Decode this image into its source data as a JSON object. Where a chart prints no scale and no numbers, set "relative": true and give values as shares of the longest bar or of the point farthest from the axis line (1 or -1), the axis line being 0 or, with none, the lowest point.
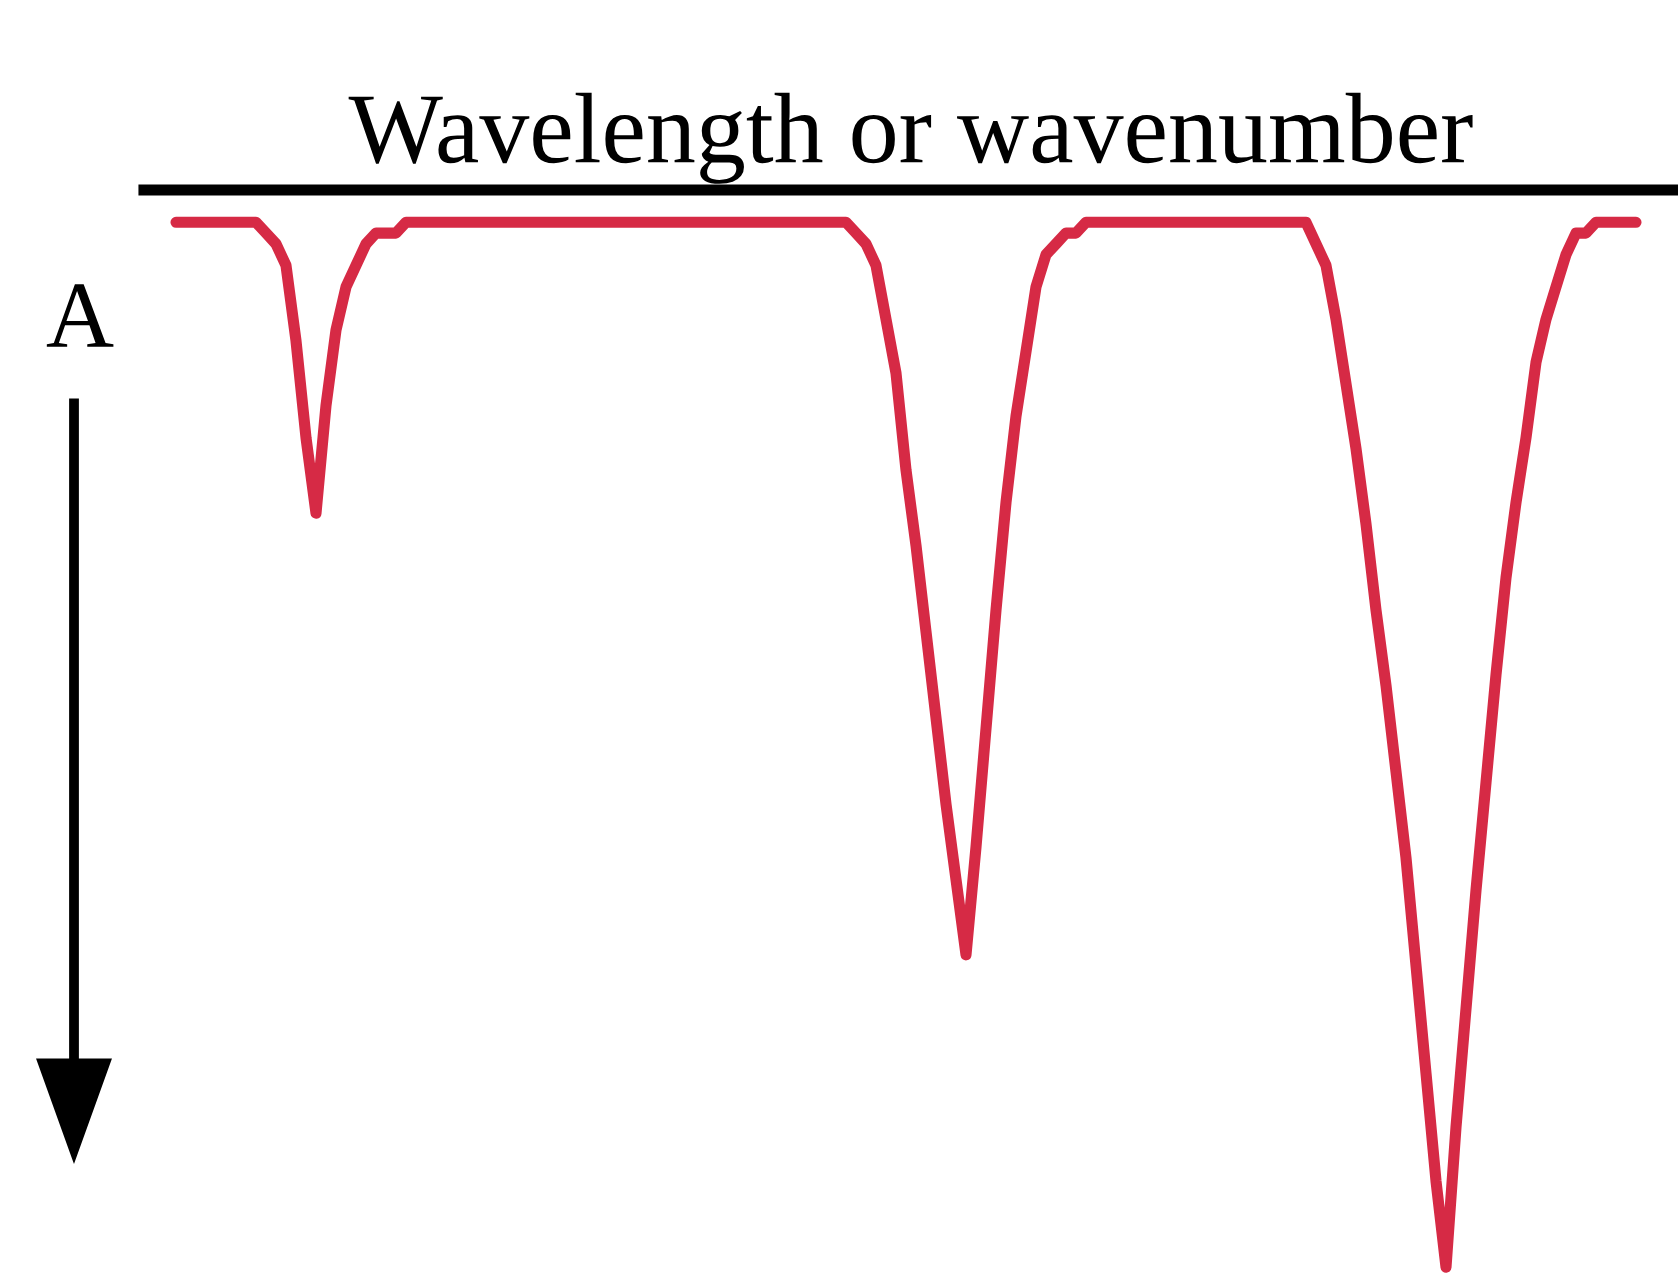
{
  "chart_data": {
    "type": "line",
    "xlabel": "Wavelength or wavenumber",
    "ylabel": "A",
    "relative": true,
    "categories": [
      null,
      null,
      null,
      null,
      null,
      null,
      null,
      null,
      null,
      null,
      null,
      null,
      null,
      null,
      null,
      null,
      null,
      null,
      null,
      null,
      null,
      null,
      null,
      null,
      null,
      null,
      null,
      null,
      null,
      null,
      null,
      null,
      null,
      null,
      null,
      null,
      null,
      null,
      null,
      null,
      null,
      null,
      null,
      null,
      null,
      null,
      null,
      null,
      null,
      null,
      null,
      null,
      null,
      null,
      null,
      null,
      null,
      null,
      null,
      null,
      null,
      null,
      null,
      null,
      null,
      null,
      null,
      null,
      null,
      null,
      null,
      null,
      null,
      null,
      null,
      null,
      null,
      null,
      null,
      null,
      null,
      null,
      null,
      null,
      null,
      null,
      null,
      null,
      null,
      null,
      null,
      null,
      null,
      null,
      null,
      null,
      null,
      null,
      null,
      null,
      null,
      null,
      null,
      null,
      null,
      null,
      null,
      null,
      null,
      null,
      null,
      null,
      null,
      null,
      null,
      null,
      null,
      null,
      null,
      null,
      null,
      null,
      null,
      null,
      null,
      null,
      null,
      null,
      null,
      null,
      null,
      null,
      null,
      null,
      null,
      null,
      null,
      null,
      null,
      null,
      null,
      null,
      null,
      null,
      null,
      null,
      null
    ],
    "series": [
      {
        "color": "#d62a45",
        "values": [
          -0.03,
          -0.03,
          -0.03,
          -0.03,
          -0.03,
          -0.03,
          -0.03,
          -0.03,
          -0.03,
          -0.04,
          -0.05,
          -0.07,
          -0.14,
          -0.23,
          -0.3,
          -0.2,
          -0.13,
          -0.09,
          -0.07,
          -0.05,
          -0.04,
          -0.04,
          -0.04,
          -0.03,
          -0.03,
          -0.03,
          -0.03,
          -0.03,
          -0.03,
          -0.03,
          -0.03,
          -0.03,
          -0.03,
          -0.03,
          -0.03,
          -0.03,
          -0.03,
          -0.03,
          -0.03,
          -0.03,
          -0.03,
          -0.03,
          -0.03,
          -0.03,
          -0.03,
          -0.03,
          -0.03,
          -0.03,
          -0.03,
          -0.03,
          -0.03,
          -0.03,
          -0.03,
          -0.03,
          -0.03,
          -0.03,
          -0.03,
          -0.03,
          -0.03,
          -0.03,
          -0.03,
          -0.03,
          -0.03,
          -0.03,
          -0.03,
          -0.03,
          -0.03,
          -0.03,
          -0.04,
          -0.05,
          -0.07,
          -0.12,
          -0.17,
          -0.26,
          -0.33,
          -0.41,
          -0.49,
          -0.57,
          -0.64,
          -0.71,
          -0.61,
          -0.5,
          -0.39,
          -0.29,
          -0.21,
          -0.15,
          -0.09,
          -0.06,
          -0.05,
          -0.04,
          -0.04,
          -0.03,
          -0.03,
          -0.03,
          -0.03,
          -0.03,
          -0.03,
          -0.03,
          -0.03,
          -0.03,
          -0.03,
          -0.03,
          -0.03,
          -0.03,
          -0.03,
          -0.03,
          -0.03,
          -0.03,
          -0.03,
          -0.03,
          -0.03,
          -0.03,
          -0.03,
          -0.03,
          -0.05,
          -0.07,
          -0.12,
          -0.18,
          -0.24,
          -0.31,
          -0.39,
          -0.46,
          -0.54,
          -0.62,
          -0.72,
          -0.82,
          -0.92,
          -1.0,
          -0.87,
          -0.76,
          -0.65,
          -0.55,
          -0.45,
          -0.36,
          -0.29,
          -0.23,
          -0.16,
          -0.12,
          -0.09,
          -0.06,
          -0.04,
          -0.04,
          -0.03,
          -0.03,
          -0.03,
          -0.03,
          -0.03
        ]
      }
    ]
  }
}
